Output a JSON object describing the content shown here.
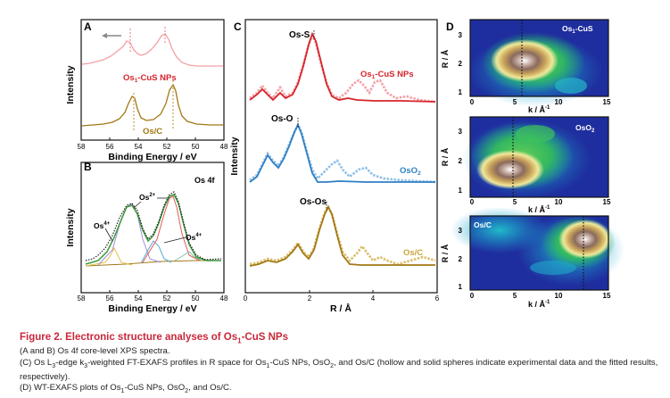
{
  "colors": {
    "caption_title": "#c8283a",
    "os1cus": "#d6242c",
    "os1cus_light": "#f3a1a5",
    "osc": "#a37814",
    "osc_light": "#d9be6a",
    "oso2": "#2e7fc4",
    "oso2_light": "#8fbfe6",
    "fit_gray": "#777777"
  },
  "panelA": {
    "letter": "A",
    "ylabel": "Intensity",
    "xlabel": "Binding Energy / eV",
    "xlim": [
      58,
      48
    ],
    "xticks": [
      "58",
      "56",
      "54",
      "52",
      "50",
      "48"
    ],
    "label_top": "Os",
    "label_top_sub": "1",
    "label_top_rest": "-CuS NPs",
    "label_bottom": "Os/C"
  },
  "panelB": {
    "letter": "B",
    "ylabel": "Intensity",
    "xlabel": "Binding Energy / eV",
    "xlim": [
      58,
      48
    ],
    "xticks": [
      "58",
      "56",
      "54",
      "52",
      "50",
      "48"
    ],
    "title": "Os 4f",
    "peak_left": "Os",
    "peak_left_sup": "4+",
    "peak_mid": "Os",
    "peak_mid_sup": "2+",
    "peak_right": "Os",
    "peak_right_sup": "4+"
  },
  "panelC": {
    "letter": "C",
    "ylabel": "Intensity",
    "xlabel": "R / Å",
    "xlim": [
      0,
      6
    ],
    "xticks": [
      "0",
      "2",
      "4",
      "6"
    ],
    "peak_top": "Os-S",
    "peak_mid": "Os-O",
    "peak_bottom": "Os-Os",
    "label_top": "Os",
    "label_top_sub": "1",
    "label_top_rest": "-CuS NPs",
    "label_mid": "OsO",
    "label_mid_sub": "2",
    "label_bottom": "Os/C"
  },
  "panelD": {
    "letter": "D",
    "ylabel": "R / Å",
    "xlabel": "k / Å",
    "xlabel_sup": "-1",
    "xticks": [
      "0",
      "5",
      "10",
      "15"
    ],
    "yticks": [
      "1",
      "2",
      "3"
    ],
    "map_labels": {
      "top": "Os",
      "top_sub": "1",
      "top_rest": "-CuS",
      "mid": "OsO",
      "mid_sub": "2",
      "bottom": "Os/C"
    }
  },
  "caption": {
    "title": "Figure 2. Electronic structure analyses of Os",
    "title_sub": "1",
    "title_rest": "-CuS NPs",
    "line_ab": "(A and B) Os 4f core-level XPS spectra.",
    "line_c_1": "(C) Os L",
    "line_c_sub1": "3",
    "line_c_2": "-edge k",
    "line_c_sub2": "3",
    "line_c_3": "-weighted FT-EXAFS profiles in R space for Os",
    "line_c_sub3": "1",
    "line_c_4": "-CuS NPs, OsO",
    "line_c_sub4": "2",
    "line_c_5": ", and Os/C (hollow and solid spheres indicate experimental data and the fitted results, respectively).",
    "line_d_1": "(D) WT-EXAFS plots of Os",
    "line_d_sub1": "1",
    "line_d_2": "-CuS NPs, OsO",
    "line_d_sub2": "2",
    "line_d_3": ", and Os/C."
  }
}
